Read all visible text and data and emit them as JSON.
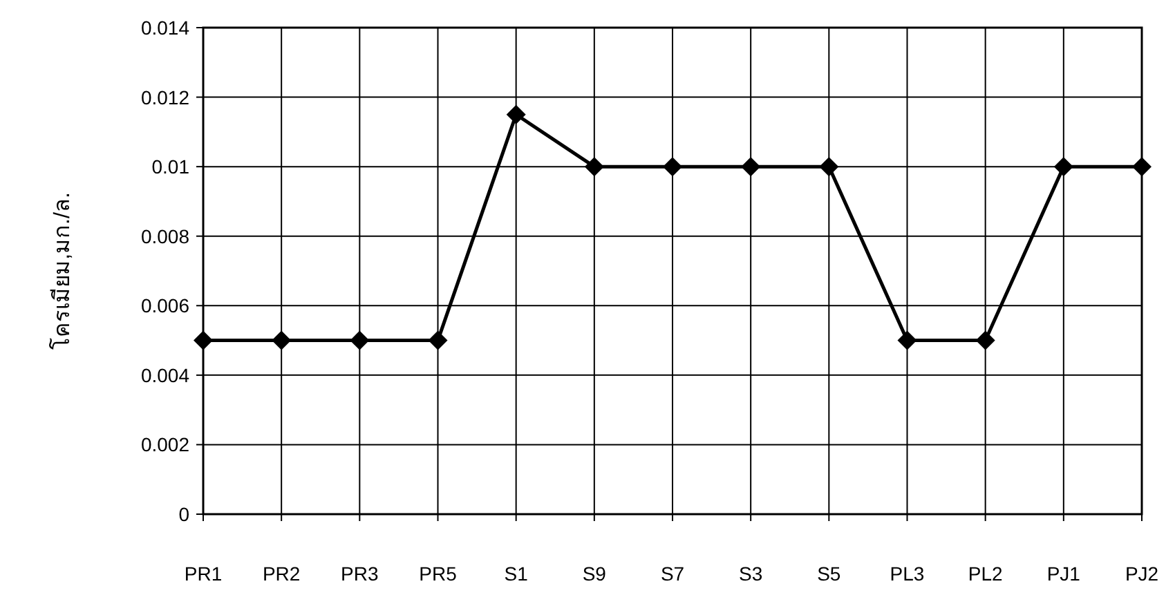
{
  "chart_data": {
    "type": "line",
    "ylabel": "โครเมียม,มก./ล.",
    "categories": [
      "PR1",
      "PR2",
      "PR3",
      "PR5",
      "S1",
      "S9",
      "S7",
      "S3",
      "S5",
      "PL3",
      "PL2",
      "PJ1",
      "PJ2"
    ],
    "series": [
      {
        "color": "#000000",
        "values": [
          0.005,
          0.005,
          0.005,
          0.005,
          0.0115,
          0.01,
          0.01,
          0.01,
          0.01,
          0.005,
          0.005,
          0.01,
          0.01
        ]
      }
    ],
    "ylim": [
      0,
      0.014
    ],
    "yticks": [
      0,
      0.002,
      0.004,
      0.006,
      0.008,
      0.01,
      0.012,
      0.014
    ],
    "grid": true,
    "marker": "diamond",
    "line_style": "solid"
  }
}
